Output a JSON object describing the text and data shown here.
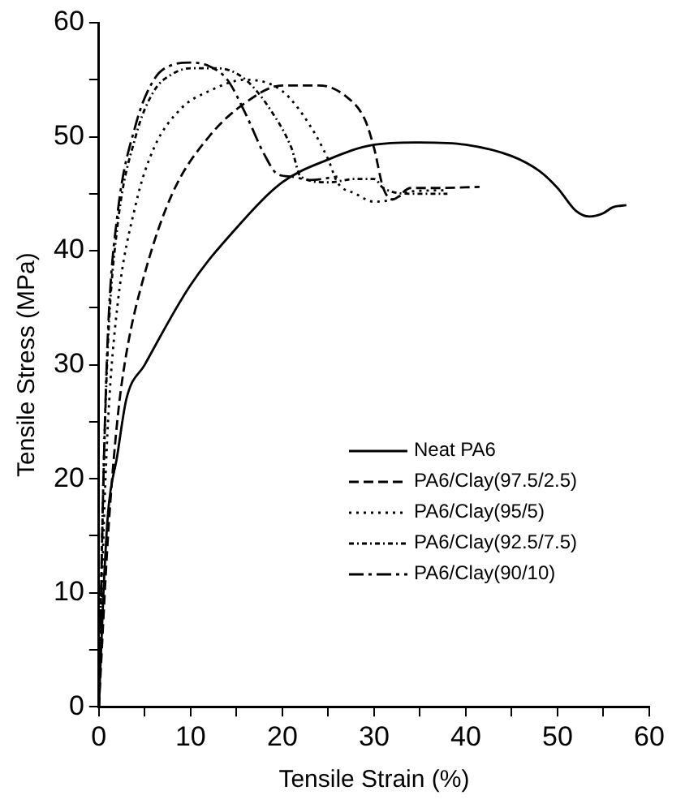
{
  "chart_data": {
    "type": "line",
    "xlabel": "Tensile Strain (%)",
    "ylabel": "Tensile Stress (MPa)",
    "xlim": [
      0,
      60
    ],
    "xticks": [
      0,
      {
        "value": 5,
        "label": null
      },
      10,
      {
        "value": 15,
        "label": null
      },
      20,
      {
        "value": 25,
        "label": null
      },
      30,
      {
        "value": 35,
        "label": null
      },
      40,
      {
        "value": 45,
        "label": null
      },
      50,
      {
        "value": 55,
        "label": null
      },
      60
    ],
    "ylim": [
      0,
      60
    ],
    "yticks": [
      0,
      {
        "value": 5,
        "label": null
      },
      10,
      {
        "value": 15,
        "label": null
      },
      20,
      {
        "value": 25,
        "label": null
      },
      30,
      {
        "value": 35,
        "label": null
      },
      40,
      {
        "value": 45,
        "label": null
      },
      50,
      {
        "value": 55,
        "label": null
      },
      60
    ],
    "grid": false,
    "legend": "right",
    "marker": "none",
    "series": [
      {
        "name": "Neat PA6",
        "color": "#000000",
        "line_style": "solid",
        "x": [
          0,
          0.5,
          1,
          2,
          3,
          5,
          10,
          15,
          20,
          25,
          30,
          35,
          40,
          45,
          48,
          50,
          52,
          53.5,
          55,
          56,
          57.5
        ],
        "values": [
          0,
          10,
          17,
          22,
          27,
          30,
          37,
          42,
          46,
          48,
          49.3,
          49.5,
          49.3,
          48.3,
          47,
          45.5,
          43.5,
          43,
          43.3,
          43.8,
          44
        ]
      },
      {
        "name": "PA6/Clay(97.5/2.5)",
        "color": "#000000",
        "line_style": "dashed",
        "x": [
          0,
          1,
          2,
          3,
          5,
          8,
          12,
          16,
          20,
          24,
          27,
          29,
          30,
          31,
          32,
          34,
          37,
          41.5
        ],
        "values": [
          0,
          15,
          25,
          31,
          38,
          45,
          50,
          53,
          54.5,
          54.5,
          53.5,
          51.5,
          49,
          45.5,
          44.5,
          45.5,
          45.5,
          45.6
        ]
      },
      {
        "name": "PA6/Clay(95/5)",
        "color": "#000000",
        "line_style": "dotted",
        "x": [
          0,
          0.5,
          1,
          2,
          4,
          6,
          9,
          12,
          16,
          20,
          23,
          25,
          26,
          28,
          30,
          32,
          34,
          38
        ],
        "values": [
          0,
          15,
          25,
          35,
          44,
          49,
          52.5,
          54,
          55,
          54,
          51,
          48,
          46,
          45,
          44.3,
          44.5,
          45.2,
          45.3
        ]
      },
      {
        "name": "PA6/Clay(92.5/7.5)",
        "color": "#000000",
        "line_style": "dotted",
        "x": [
          0,
          0.5,
          1,
          2,
          4,
          6,
          8,
          10,
          13,
          16,
          19,
          21,
          22,
          25,
          28,
          30,
          31,
          34,
          38
        ],
        "values": [
          0,
          20,
          32,
          42,
          50,
          54,
          55.5,
          56,
          56,
          55,
          52,
          49,
          46.5,
          46,
          46.3,
          46.3,
          45.5,
          45,
          45
        ]
      },
      {
        "name": "PA6/Clay(90/10)",
        "color": "#000000",
        "line_style": "dashed",
        "x": [
          0,
          0.5,
          1,
          2,
          4,
          6,
          8,
          10,
          12,
          14,
          16,
          18,
          19.5,
          21,
          23,
          26
        ],
        "values": [
          0,
          20,
          33,
          43,
          51,
          55,
          56.3,
          56.5,
          56.2,
          55,
          52,
          48.5,
          46.7,
          46.5,
          46.2,
          46.5
        ]
      }
    ]
  }
}
